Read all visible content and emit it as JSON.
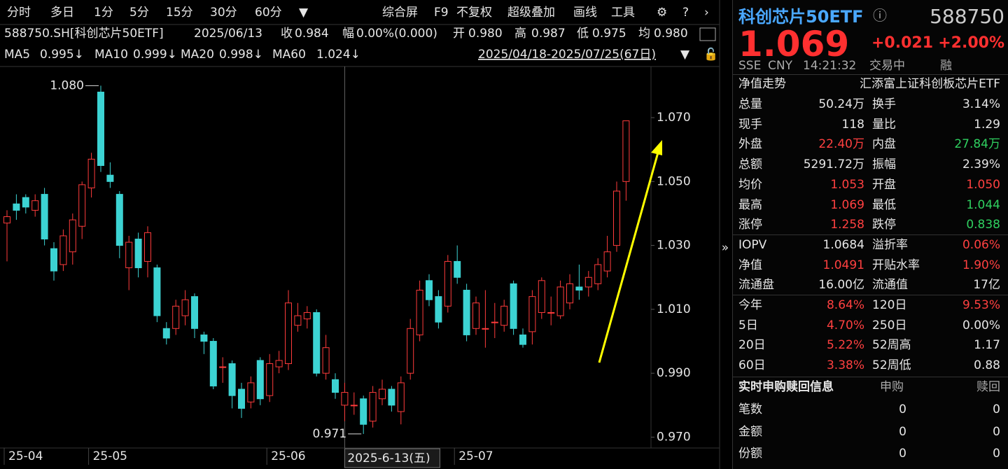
{
  "toolbar": {
    "periods": [
      "分时",
      "多日",
      "1分",
      "5分",
      "15分",
      "30分",
      "60分"
    ],
    "tools": [
      "综合屏",
      "F9",
      "不复权",
      "超级叠加",
      "画线",
      "工具"
    ]
  },
  "info": [
    {
      "text": "588750.SH[科创芯片50ETF]",
      "color": "white"
    },
    {
      "text": "2025/06/13",
      "color": "white"
    },
    {
      "text": "收",
      "color": "white"
    },
    {
      "text": "0.984",
      "color": "white"
    },
    {
      "text": "幅",
      "color": "white"
    },
    {
      "text": "0.00%(0.000)",
      "color": "white"
    },
    {
      "text": "开",
      "color": "white"
    },
    {
      "text": "0.980",
      "color": "green"
    },
    {
      "text": "高",
      "color": "white"
    },
    {
      "text": "0.987",
      "color": "red"
    },
    {
      "text": "低",
      "color": "white"
    },
    {
      "text": "0.975",
      "color": "green"
    },
    {
      "text": "均",
      "color": "white"
    },
    {
      "text": "0.980",
      "color": "green"
    }
  ],
  "ma": [
    {
      "name": "MA5",
      "value": "0.995↓",
      "color": "#ff9a2e"
    },
    {
      "name": "MA10",
      "value": "0.999↓",
      "color": "#e8d820"
    },
    {
      "name": "MA20",
      "value": "0.998↓",
      "color": "#d040d8"
    },
    {
      "name": "MA60",
      "value": "1.024↓",
      "color": "#30c050"
    }
  ],
  "range": "2025/04/18-2025/07/25(67日)",
  "chart_data": {
    "type": "candlestick",
    "up_color": "#ff3b3b",
    "down_color": "#3cd3d3",
    "categories": [
      "25-04",
      null,
      null,
      null,
      null,
      null,
      null,
      null,
      null,
      "25-05",
      null,
      null,
      null,
      null,
      null,
      null,
      null,
      null,
      null,
      null,
      null,
      null,
      null,
      null,
      null,
      null,
      null,
      null,
      "25-06",
      null,
      null,
      null,
      null,
      null,
      null,
      null,
      null,
      null,
      null,
      null,
      null,
      null,
      null,
      null,
      null,
      null,
      null,
      null,
      "25-07",
      null,
      null,
      null,
      null,
      null,
      null,
      null,
      null,
      null,
      null,
      null,
      null,
      null,
      null,
      null,
      null,
      null,
      null
    ],
    "open": [
      1.037,
      1.043,
      1.045,
      1.041,
      1.046,
      1.029,
      1.024,
      1.028,
      1.036,
      1.048,
      1.078,
      1.052,
      1.046,
      1.023,
      1.032,
      1.025,
      1.023,
      1.004,
      1.004,
      1.008,
      1.014,
      1.002,
      1.0,
      0.992,
      0.993,
      0.985,
      0.981,
      0.994,
      0.983,
      0.992,
      0.993,
      1.005,
      1.007,
      1.009,
      0.99,
      0.988,
      0.98,
      0.98,
      0.982,
      0.975,
      0.982,
      0.985,
      0.978,
      0.99,
      1.002,
      1.019,
      1.014,
      1.011,
      1.025,
      1.016,
      1.004,
      1.004,
      1.006,
      1.005,
      1.018,
      1.002,
      1.003,
      1.009,
      1.009,
      1.008,
      1.012,
      1.017,
      1.017,
      1.018,
      1.022,
      1.03,
      1.05
    ],
    "close": [
      1.039,
      1.041,
      1.042,
      1.044,
      1.032,
      1.022,
      1.033,
      1.038,
      1.049,
      1.057,
      1.055,
      1.05,
      1.03,
      1.031,
      1.023,
      1.034,
      1.008,
      1.001,
      1.011,
      1.013,
      1.004,
      1.0,
      0.986,
      0.992,
      0.983,
      0.979,
      0.987,
      0.982,
      0.993,
      0.994,
      1.012,
      1.008,
      1.009,
      0.99,
      0.998,
      0.984,
      0.984,
      0.98,
      0.974,
      0.984,
      0.985,
      0.98,
      0.987,
      1.004,
      1.016,
      1.013,
      1.006,
      1.025,
      1.02,
      1.002,
      1.012,
      1.004,
      1.006,
      1.011,
      1.004,
      0.999,
      1.014,
      1.019,
      1.009,
      1.017,
      1.018,
      1.016,
      1.02,
      1.024,
      1.028,
      1.047,
      1.069
    ],
    "high": [
      1.041,
      1.046,
      1.046,
      1.046,
      1.048,
      1.031,
      1.035,
      1.04,
      1.05,
      1.059,
      1.08,
      1.056,
      1.047,
      1.033,
      1.034,
      1.036,
      1.024,
      1.006,
      1.013,
      1.016,
      1.015,
      1.003,
      1.001,
      0.995,
      0.994,
      0.987,
      0.989,
      0.995,
      0.996,
      0.997,
      1.016,
      1.012,
      1.011,
      1.01,
      1.002,
      0.99,
      0.987,
      0.984,
      0.983,
      0.986,
      0.988,
      0.986,
      0.989,
      1.007,
      1.019,
      1.021,
      1.016,
      1.027,
      1.03,
      1.018,
      1.014,
      1.016,
      1.012,
      1.013,
      1.019,
      1.004,
      1.016,
      1.02,
      1.014,
      1.019,
      1.021,
      1.024,
      1.022,
      1.026,
      1.033,
      1.05,
      1.069
    ],
    "low": [
      1.025,
      1.038,
      1.04,
      1.039,
      1.03,
      1.019,
      1.022,
      1.024,
      1.032,
      1.045,
      1.053,
      1.048,
      1.026,
      1.016,
      1.02,
      1.02,
      1.006,
      0.999,
      1.002,
      1.005,
      1.001,
      0.996,
      0.985,
      0.987,
      0.979,
      0.976,
      0.979,
      0.98,
      0.981,
      0.99,
      0.991,
      1.003,
      1.004,
      0.989,
      0.988,
      0.982,
      0.975,
      0.977,
      0.971,
      0.973,
      0.98,
      0.978,
      0.974,
      0.988,
      1.0,
      1.011,
      1.004,
      1.009,
      1.018,
      1.0,
      1.002,
      0.998,
      1.001,
      1.003,
      1.002,
      0.998,
      0.999,
      1.007,
      1.005,
      1.007,
      1.01,
      1.013,
      1.014,
      1.016,
      1.02,
      1.028,
      1.044
    ],
    "ylim": [
      0.9666,
      1.086
    ],
    "yticks": [
      {
        "value": 0.97,
        "label": "0.970"
      },
      {
        "value": 0.99,
        "label": "0.990"
      },
      {
        "value": 1.01,
        "label": "1.010"
      },
      {
        "value": 1.03,
        "label": "1.030"
      },
      {
        "value": 1.05,
        "label": "1.050"
      },
      {
        "value": 1.07,
        "label": "1.070"
      }
    ],
    "annotations": [
      {
        "index": 10,
        "value": 1.08,
        "label": "1.080"
      },
      {
        "index": 38,
        "value": 0.971,
        "label": "0.971"
      }
    ],
    "crosshair": {
      "index": 36,
      "label": "2025-6-13(五)"
    }
  },
  "quote": {
    "name": "科创芯片50ETF",
    "code": "588750",
    "price": "1.069",
    "change": "+0.021",
    "pct": "+2.00%",
    "exchange": "SSE",
    "currency": "CNY",
    "time": "14:21:32",
    "status": "交易中",
    "margin": "融"
  },
  "nav": {
    "label": "净值走势",
    "fund": "汇添富上证科创板芯片ETF"
  },
  "stats": [
    [
      {
        "label": "总量",
        "value": "50.24万",
        "color": "white"
      },
      {
        "label": "换手",
        "value": "3.14%",
        "color": "white"
      }
    ],
    [
      {
        "label": "现手",
        "value": "118",
        "color": "white"
      },
      {
        "label": "量比",
        "value": "1.29",
        "color": "white"
      }
    ],
    [
      {
        "label": "外盘",
        "value": "22.40万",
        "color": "red"
      },
      {
        "label": "内盘",
        "value": "27.84万",
        "color": "green"
      }
    ],
    [
      {
        "label": "总额",
        "value": "5291.72万",
        "color": "white"
      },
      {
        "label": "振幅",
        "value": "2.39%",
        "color": "white"
      }
    ],
    [
      {
        "label": "均价",
        "value": "1.053",
        "color": "red"
      },
      {
        "label": "开盘",
        "value": "1.050",
        "color": "red"
      }
    ],
    [
      {
        "label": "最高",
        "value": "1.069",
        "color": "red"
      },
      {
        "label": "最低",
        "value": "1.044",
        "color": "green"
      }
    ],
    [
      {
        "label": "涨停",
        "value": "1.258",
        "color": "red"
      },
      {
        "label": "跌停",
        "value": "0.838",
        "color": "green"
      }
    ],
    [
      {
        "label": "IOPV",
        "value": "1.0684",
        "color": "white"
      },
      {
        "label": "溢折率",
        "value": "0.06%",
        "color": "red"
      }
    ],
    [
      {
        "label": "净值",
        "value": "1.0491",
        "color": "red"
      },
      {
        "label": "开贴水率",
        "value": "1.90%",
        "color": "red"
      }
    ],
    [
      {
        "label": "流通盘",
        "value": "16.00亿",
        "color": "white"
      },
      {
        "label": "流通值",
        "value": "17亿",
        "color": "white"
      }
    ],
    [
      {
        "label": "今年",
        "value": "8.64%",
        "color": "red"
      },
      {
        "label": "120日",
        "value": "9.53%",
        "color": "red"
      }
    ],
    [
      {
        "label": "5日",
        "value": "4.70%",
        "color": "red"
      },
      {
        "label": "250日",
        "value": "0.00%",
        "color": "white"
      }
    ],
    [
      {
        "label": "20日",
        "value": "5.22%",
        "color": "red"
      },
      {
        "label": "52周高",
        "value": "1.17",
        "color": "white"
      }
    ],
    [
      {
        "label": "60日",
        "value": "3.38%",
        "color": "red"
      },
      {
        "label": "52周低",
        "value": "0.88",
        "color": "white"
      }
    ]
  ],
  "redemption": {
    "title": "实时申购赎回信息",
    "columns": [
      "申购",
      "赎回"
    ],
    "rows": [
      {
        "label": "笔数",
        "values": [
          "0",
          "0"
        ]
      },
      {
        "label": "金额",
        "values": [
          "0",
          "0"
        ]
      },
      {
        "label": "份额",
        "values": [
          "0",
          "0"
        ]
      }
    ]
  }
}
